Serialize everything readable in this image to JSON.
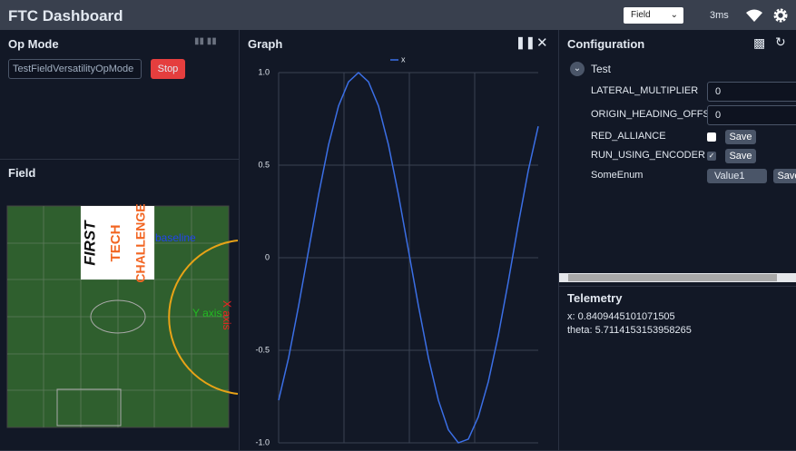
{
  "header": {
    "title": "FTC Dashboard",
    "layout_select": "Field",
    "latency": "3ms"
  },
  "op_mode": {
    "title": "Op Mode",
    "selected": "TestFieldVersatilityOpMode",
    "stop_button": "Stop"
  },
  "field": {
    "title": "Field",
    "logo": [
      "FIRST",
      "TECH",
      "CHALLENGE"
    ],
    "labels": {
      "baseline": "baseline",
      "y_axis": "Y axis",
      "x_axis": "X axis"
    }
  },
  "graph": {
    "title": "Graph",
    "chart": {
      "type": "line",
      "series": [
        {
          "name": "x",
          "color": "#3b6fe6",
          "values": [
            -0.77,
            -0.54,
            -0.26,
            0.04,
            0.34,
            0.61,
            0.82,
            0.95,
            1.0,
            0.95,
            0.82,
            0.61,
            0.34,
            0.04,
            -0.26,
            -0.54,
            -0.77,
            -0.93,
            -1.0,
            -0.98,
            -0.86,
            -0.67,
            -0.42,
            -0.13,
            0.18,
            0.47,
            0.71
          ]
        }
      ],
      "ylim": [
        -1,
        1
      ],
      "yticks": [
        {
          "value": 1,
          "label": "1.0"
        },
        0.5,
        0,
        -0.5,
        {
          "value": -1,
          "label": "-1.0"
        }
      ],
      "grid": true
    }
  },
  "configuration": {
    "title": "Configuration",
    "group": "Test",
    "rows": [
      {
        "label": "LATERAL_MULTIPLIER",
        "value": "0"
      },
      {
        "label": "ORIGIN_HEADING_OFFSET",
        "value": "0"
      },
      {
        "label": "RED_ALLIANCE",
        "checked": false,
        "button": "Save"
      },
      {
        "label": "RUN_USING_ENCODER",
        "checked": true,
        "button": "Save"
      },
      {
        "label": "SomeEnum",
        "value": "Value1",
        "button": "Save"
      }
    ]
  },
  "telemetry": {
    "title": "Telemetry",
    "lines": [
      "x: 0.8409445101071505",
      "theta: 5.7114153153958265"
    ]
  }
}
